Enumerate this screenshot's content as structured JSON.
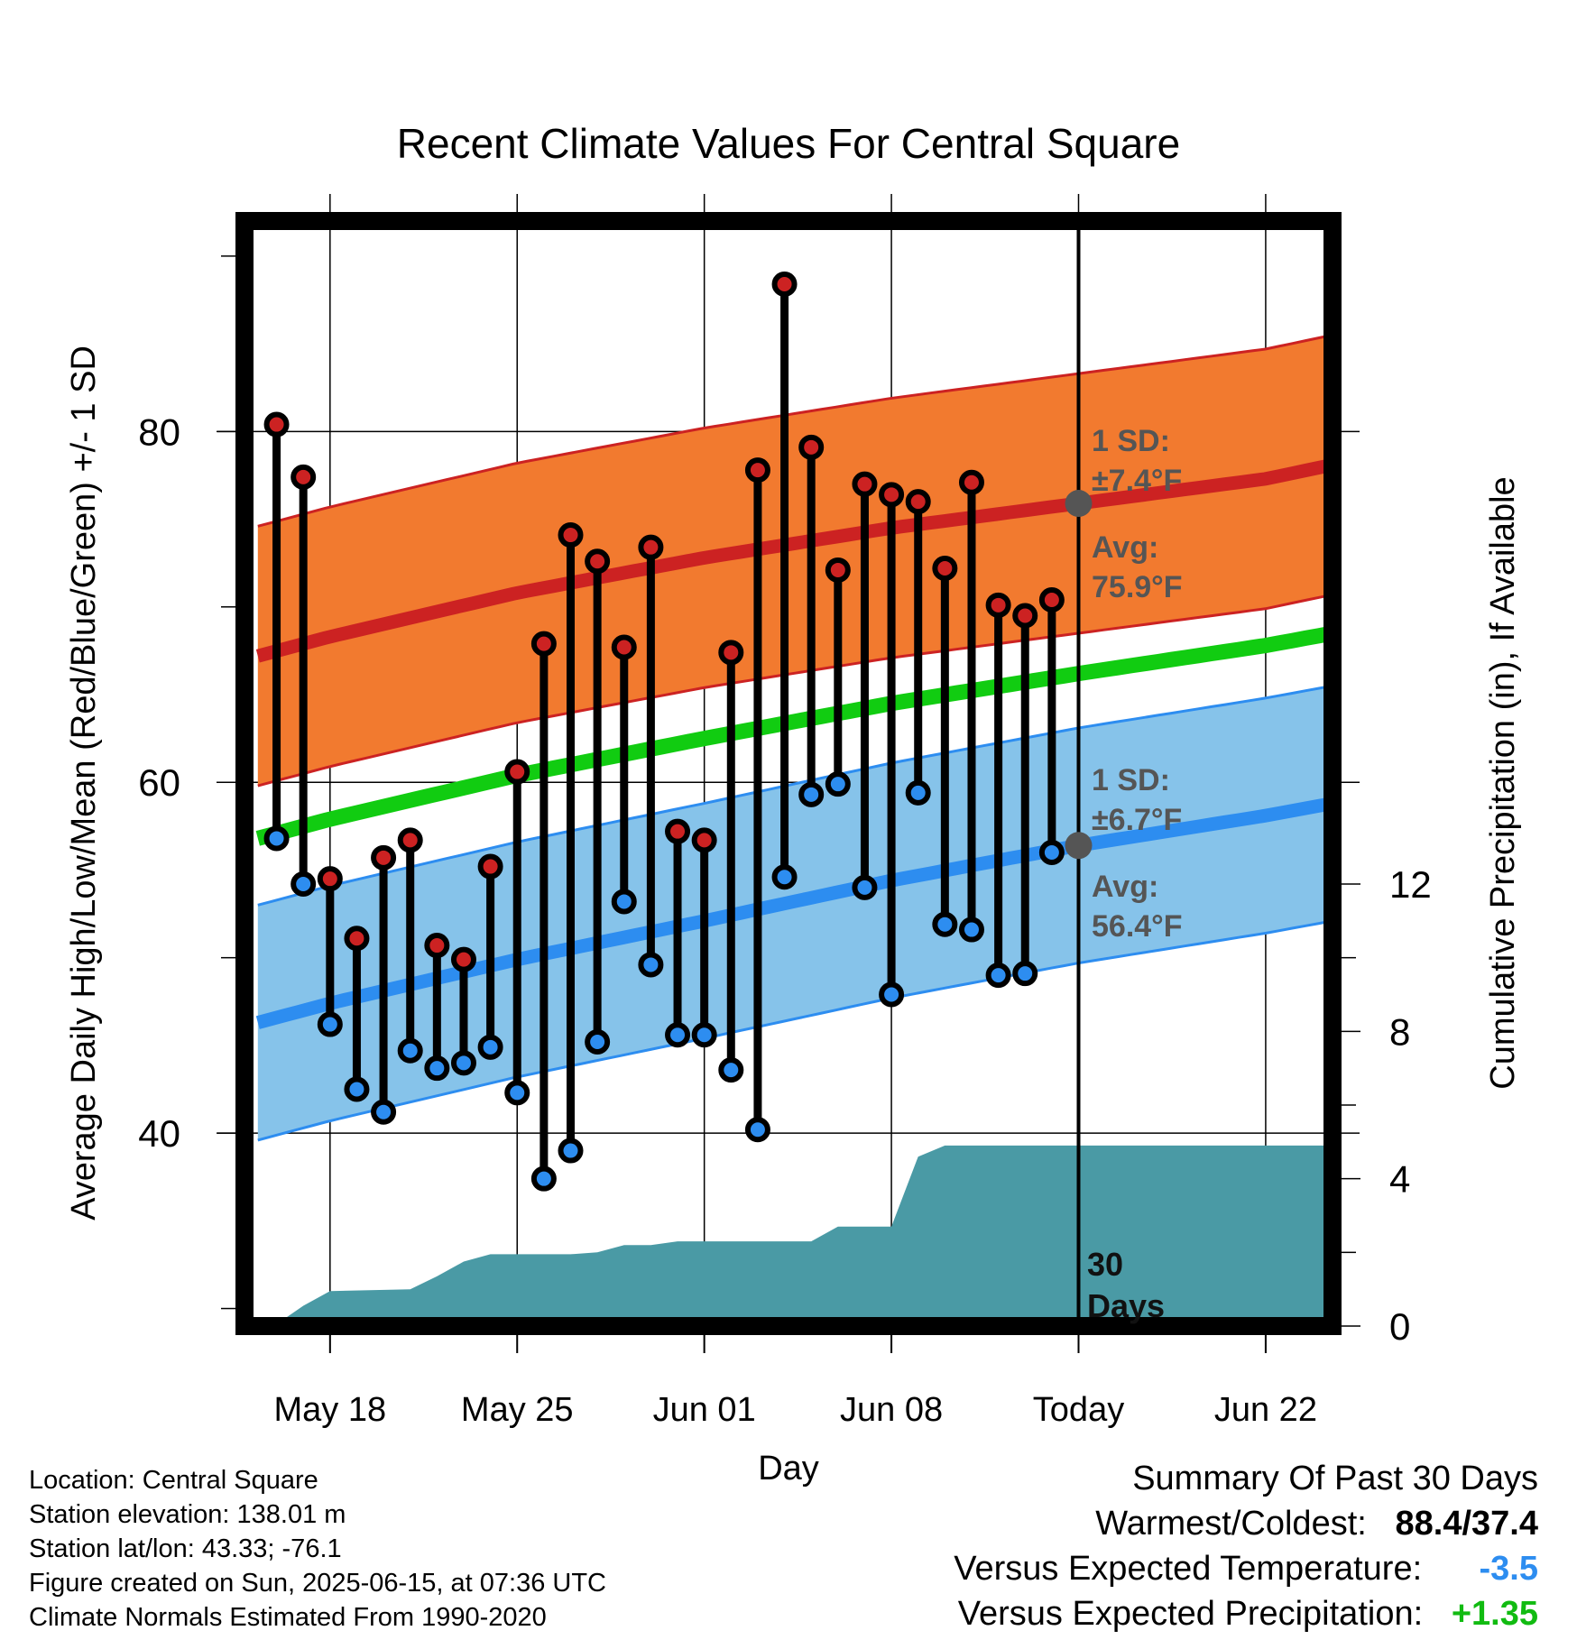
{
  "chart_data": {
    "type": "line",
    "title": "Recent Climate Values For Central Square",
    "xlabel": "Day",
    "ylabel": "Average Daily High/Low/Mean (Red/Blue/Green) +/- 1 SD",
    "y2label": "Cumulative Precipitation (in), If Available",
    "x_ticks": [
      {
        "day": 0,
        "label": "May 18"
      },
      {
        "day": 7,
        "label": "May 25"
      },
      {
        "day": 14,
        "label": "Jun 01"
      },
      {
        "day": 21,
        "label": "Jun 08"
      },
      {
        "day": 28,
        "label": "Today"
      },
      {
        "day": 35,
        "label": "Jun 22"
      }
    ],
    "xlim": [
      -3.2,
      37.5
    ],
    "ylim": [
      29,
      92
    ],
    "y_ticks": [
      40,
      60,
      80
    ],
    "y2lim": [
      0,
      30
    ],
    "y2_ticks": [
      0,
      4,
      8,
      12
    ],
    "today_day": 28,
    "normals": {
      "x": [
        -2.7,
        0,
        7,
        14,
        21,
        28,
        35,
        37.5
      ],
      "high_mean": [
        67.2,
        68.3,
        70.8,
        72.8,
        74.5,
        75.9,
        77.3,
        78.1
      ],
      "high_sd": 7.4,
      "low_mean": [
        46.3,
        47.4,
        49.9,
        52.1,
        54.4,
        56.4,
        58.1,
        58.8
      ],
      "low_sd": 6.7,
      "mean": [
        56.8,
        57.9,
        60.4,
        62.5,
        64.5,
        66.2,
        67.8,
        68.5
      ]
    },
    "series": [
      {
        "name": "High",
        "color": "#cc2222",
        "x": [
          -2,
          -1,
          0,
          1,
          2,
          3,
          4,
          5,
          6,
          7,
          8,
          9,
          10,
          11,
          12,
          13,
          14,
          15,
          16,
          17,
          18,
          19,
          20,
          21,
          22,
          23,
          24,
          25,
          26,
          27
        ],
        "values": [
          80.4,
          77.4,
          54.5,
          51.1,
          55.7,
          56.7,
          50.7,
          49.9,
          55.2,
          60.6,
          67.9,
          74.1,
          72.6,
          67.7,
          73.4,
          57.2,
          56.7,
          67.4,
          77.8,
          88.4,
          79.1,
          72.1,
          77.0,
          76.4,
          76.0,
          72.2,
          77.1,
          70.1,
          69.5,
          70.4
        ]
      },
      {
        "name": "Low",
        "color": "#2d8df0",
        "x": [
          -2,
          -1,
          0,
          1,
          2,
          3,
          4,
          5,
          6,
          7,
          8,
          9,
          10,
          11,
          12,
          13,
          14,
          15,
          16,
          17,
          18,
          19,
          20,
          21,
          22,
          23,
          24,
          25,
          26,
          27
        ],
        "values": [
          56.8,
          54.2,
          46.2,
          42.5,
          41.2,
          44.7,
          43.7,
          44.0,
          44.9,
          42.3,
          37.4,
          39.0,
          45.2,
          53.2,
          49.6,
          45.6,
          45.6,
          43.6,
          40.2,
          54.6,
          59.3,
          59.9,
          54.0,
          47.9,
          59.4,
          51.9,
          51.6,
          49.0,
          49.1,
          56.0
        ]
      },
      {
        "name": "Precipitation",
        "color": "#4a9aa5",
        "x": [
          -2.1,
          -1,
          0,
          3,
          4,
          5,
          6,
          7,
          8,
          9,
          10,
          11,
          12,
          13,
          14,
          15,
          16,
          17,
          18,
          19,
          20,
          21,
          22,
          23,
          28,
          37.5
        ],
        "values": [
          0,
          0.55,
          0.95,
          1.0,
          1.35,
          1.75,
          1.95,
          1.95,
          1.95,
          1.95,
          2.0,
          2.2,
          2.2,
          2.3,
          2.3,
          2.3,
          2.3,
          2.3,
          2.3,
          2.7,
          2.7,
          2.7,
          4.6,
          4.9,
          4.9,
          4.9
        ]
      }
    ],
    "today_markers": {
      "high": 75.9,
      "low": 56.4
    },
    "annotations": {
      "high_sd_label": "1 SD:",
      "high_sd_value": "±7.4°F",
      "high_avg_label": "Avg:",
      "high_avg_value": "75.9°F",
      "low_sd_label": "1 SD:",
      "low_sd_value": "±6.7°F",
      "low_avg_label": "Avg:",
      "low_avg_value": "56.4°F",
      "window_num": "30",
      "window_unit": "Days"
    },
    "colors": {
      "high_band": "#f27a2f",
      "high_line": "#cc2222",
      "low_band": "#86c3ea",
      "low_line": "#2d8df0",
      "mean_line": "#11cc11",
      "precip": "#4a9aa5",
      "annotation": "#555555"
    }
  },
  "info": {
    "location": "Location: Central Square",
    "elevation": "Station elevation: 138.01 m",
    "latlon": "Station lat/lon: 43.33; -76.1",
    "created": "Figure created on Sun, 2025-06-15, at 07:36 UTC",
    "normals": "Climate Normals Estimated From 1990-2020"
  },
  "summary": {
    "title": "Summary Of Past 30 Days",
    "warm_cold_label": "Warmest/Coldest:",
    "warm_cold_value": "88.4/37.4",
    "temp_label": "Versus Expected Temperature:",
    "temp_value": "-3.5",
    "temp_color": "#2d8df0",
    "precip_label": "Versus Expected Precipitation:",
    "precip_value": "+1.35",
    "precip_color": "#11bb11"
  }
}
